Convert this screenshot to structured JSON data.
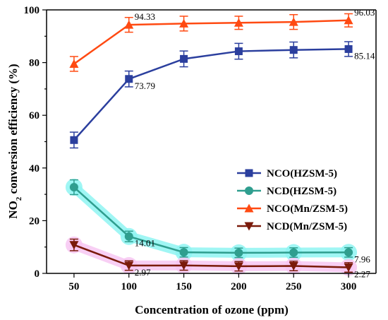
{
  "chart_data": {
    "type": "line",
    "x": [
      50,
      100,
      150,
      200,
      250,
      300
    ],
    "xlabel": "Concentration of ozone (ppm)",
    "ylabel": "NO2 conversion efficiency (%)",
    "ylabel_parts": [
      "NO",
      "2",
      " conversion efficiency (%)"
    ],
    "xlim": [
      25,
      325
    ],
    "ylim": [
      0,
      100
    ],
    "xticks": [
      50,
      100,
      150,
      200,
      250,
      300
    ],
    "yticks": [
      0,
      20,
      40,
      60,
      80,
      100
    ],
    "grid": false,
    "legend_position": "center-right",
    "series": [
      {
        "name": "NCO(HZSM-5)",
        "color": "#2b3f9e",
        "marker": "square",
        "values": [
          50.6,
          73.79,
          81.4,
          84.3,
          84.8,
          85.14
        ],
        "errors": [
          3.0,
          3.0,
          3.0,
          3.0,
          3.0,
          2.8
        ],
        "data_labels": [
          {
            "index": 1,
            "text": "73.79"
          },
          {
            "index": 5,
            "text": "85.14"
          }
        ]
      },
      {
        "name": "NCD(HZSM-5)",
        "color": "#2f9e8f",
        "highlight": "#8ff5f2",
        "marker": "circle",
        "values": [
          32.7,
          14.01,
          8.0,
          7.8,
          7.9,
          7.96
        ],
        "errors": [
          2.8,
          2.0,
          1.8,
          1.8,
          1.8,
          1.8
        ],
        "data_labels": [
          {
            "index": 1,
            "text": "14.01"
          },
          {
            "index": 5,
            "text": "7.96"
          }
        ]
      },
      {
        "name": "NCO(Mn/ZSM-5)",
        "color": "#ff4a12",
        "marker": "triangle-up",
        "values": [
          79.5,
          94.33,
          94.8,
          95.1,
          95.4,
          96.03
        ],
        "errors": [
          2.8,
          2.8,
          2.8,
          2.5,
          2.8,
          2.5
        ],
        "data_labels": [
          {
            "index": 1,
            "text": "94.33"
          },
          {
            "index": 5,
            "text": "96.03"
          }
        ]
      },
      {
        "name": "NCD(Mn/ZSM-5)",
        "color": "#7a1a0a",
        "highlight": "#f7c7f2",
        "marker": "triangle-down",
        "values": [
          10.8,
          2.97,
          3.0,
          2.7,
          2.8,
          2.27
        ],
        "errors": [
          2.2,
          1.8,
          1.8,
          1.8,
          1.8,
          1.8
        ],
        "data_labels": [
          {
            "index": 1,
            "text": "2.97"
          },
          {
            "index": 5,
            "text": "2.27"
          }
        ]
      }
    ]
  }
}
